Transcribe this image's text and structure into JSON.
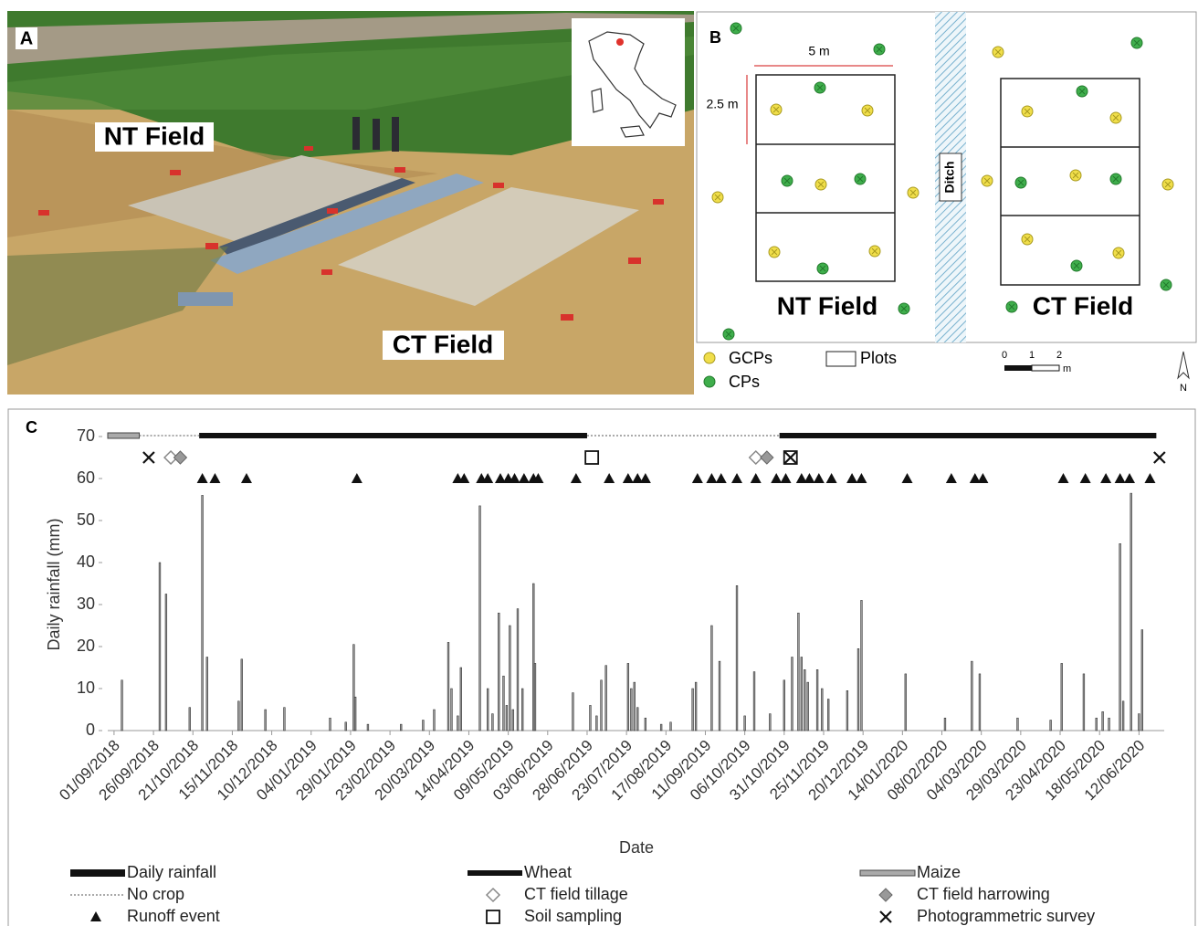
{
  "panel_a": {
    "label": "A",
    "nt_field": "NT Field",
    "ct_field": "CT Field"
  },
  "panel_b": {
    "label": "B",
    "width_label": "5 m",
    "height_label": "2.5 m",
    "ditch": "Ditch",
    "nt_field": "NT Field",
    "ct_field": "CT Field",
    "legend": {
      "gcps": "GCPs",
      "cps": "CPs",
      "plots": "Plots"
    },
    "scale": {
      "ticks": [
        "0",
        "1",
        "2"
      ],
      "unit": "m"
    },
    "north": "N"
  },
  "chart_data": {
    "type": "bar",
    "panel_label": "C",
    "x_label": "Date",
    "y_label": "Daily rainfall (mm)",
    "xlim": [
      "28/08/2018",
      "28/06/2020"
    ],
    "xticks": [
      "01/09/2018",
      "26/09/2018",
      "21/10/2018",
      "15/11/2018",
      "10/12/2018",
      "04/01/2019",
      "29/01/2019",
      "23/02/2019",
      "20/03/2019",
      "14/04/2019",
      "09/05/2019",
      "03/06/2019",
      "28/06/2019",
      "23/07/2019",
      "17/08/2019",
      "11/09/2019",
      "06/10/2019",
      "31/10/2019",
      "25/11/2019",
      "20/12/2019",
      "14/01/2020",
      "08/02/2020",
      "04/03/2020",
      "29/03/2020",
      "23/04/2020",
      "18/05/2020",
      "12/06/2020"
    ],
    "ylim": [
      0,
      70
    ],
    "yticks": [
      0,
      10,
      20,
      30,
      40,
      50,
      60,
      70
    ],
    "series": [
      {
        "name": "Daily rainfall",
        "color": "#222222",
        "x": [
          "06/09/2018",
          "30/09/2018",
          "04/10/2018",
          "19/10/2018",
          "27/10/2018",
          "30/10/2018",
          "19/11/2018",
          "21/11/2018",
          "06/12/2018",
          "18/12/2018",
          "16/01/2019",
          "26/01/2019",
          "31/01/2019",
          "01/02/2019",
          "09/02/2019",
          "02/03/2019",
          "16/03/2019",
          "23/03/2019",
          "01/04/2019",
          "03/04/2019",
          "07/04/2019",
          "09/04/2019",
          "21/04/2019",
          "26/04/2019",
          "29/04/2019",
          "03/05/2019",
          "06/05/2019",
          "08/05/2019",
          "10/05/2019",
          "12/05/2019",
          "15/05/2019",
          "18/05/2019",
          "25/05/2019",
          "26/05/2019",
          "19/06/2019",
          "30/06/2019",
          "04/07/2019",
          "07/07/2019",
          "10/07/2019",
          "24/07/2019",
          "26/07/2019",
          "28/07/2019",
          "30/07/2019",
          "04/08/2019",
          "14/08/2019",
          "20/08/2019",
          "03/09/2019",
          "05/09/2019",
          "15/09/2019",
          "20/09/2019",
          "01/10/2019",
          "06/10/2019",
          "12/10/2019",
          "22/10/2019",
          "31/10/2019",
          "05/11/2019",
          "09/11/2019",
          "11/11/2019",
          "13/11/2019",
          "15/11/2019",
          "21/11/2019",
          "24/11/2019",
          "28/11/2019",
          "10/12/2019",
          "17/12/2019",
          "19/12/2019",
          "16/01/2020",
          "10/02/2020",
          "27/02/2020",
          "03/03/2020",
          "27/03/2020",
          "17/04/2020",
          "24/04/2020",
          "08/05/2020",
          "16/05/2020",
          "20/05/2020",
          "24/05/2020",
          "31/05/2020",
          "02/06/2020",
          "07/06/2020",
          "12/06/2020",
          "14/06/2020"
        ],
        "values": [
          12,
          40,
          32.5,
          5.5,
          56,
          17.5,
          7,
          17,
          5,
          5.5,
          3,
          2,
          20.5,
          8,
          1.5,
          1.5,
          2.5,
          5,
          21,
          10,
          3.5,
          15,
          53.5,
          10,
          4,
          28,
          13,
          6,
          25,
          5,
          29,
          10,
          35,
          16,
          9,
          6,
          3.5,
          12,
          15.5,
          16,
          10,
          11.5,
          5.5,
          3,
          1.5,
          2,
          10,
          11.5,
          25,
          16.5,
          34.5,
          3.5,
          14,
          4,
          12,
          17.5,
          28,
          17.5,
          14.5,
          11.5,
          14.5,
          10,
          7.5,
          9.5,
          19.5,
          31,
          13.5,
          3,
          16.5,
          13.5,
          3,
          2.5,
          16,
          13.5,
          3,
          4.5,
          3,
          44.5,
          7,
          56.5,
          4,
          24
        ]
      }
    ],
    "crops": [
      {
        "name": "Wheat",
        "style": "thick",
        "periods": [
          [
            "25/10/2018",
            "28/06/2019"
          ],
          [
            "28/10/2019",
            "23/06/2020"
          ]
        ]
      },
      {
        "name": "Maize",
        "style": "double",
        "periods": [
          [
            "28/08/2018",
            "17/09/2018"
          ]
        ]
      },
      {
        "name": "No crop",
        "style": "dotted",
        "periods": [
          [
            "17/09/2018",
            "25/10/2018"
          ],
          [
            "28/06/2019",
            "28/10/2019"
          ]
        ]
      }
    ],
    "events": [
      {
        "name": "CT field tillage",
        "marker": "open-diamond",
        "dates": [
          "07/10/2018",
          "13/10/2019"
        ]
      },
      {
        "name": "CT field harrowing",
        "marker": "diamond",
        "dates": [
          "13/10/2018",
          "20/10/2019"
        ]
      },
      {
        "name": "Runoff event",
        "marker": "triangle",
        "dates": [
          "27/10/2018",
          "04/11/2018",
          "24/11/2018",
          "02/02/2019",
          "07/04/2019",
          "11/04/2019",
          "22/04/2019",
          "26/04/2019",
          "04/05/2019",
          "09/05/2019",
          "13/05/2019",
          "19/05/2019",
          "25/05/2019",
          "28/05/2019",
          "21/06/2019",
          "12/07/2019",
          "24/07/2019",
          "30/07/2019",
          "04/08/2019",
          "06/09/2019",
          "15/09/2019",
          "21/09/2019",
          "01/10/2019",
          "13/10/2019",
          "26/10/2019",
          "01/11/2019",
          "11/11/2019",
          "16/11/2019",
          "22/11/2019",
          "30/11/2019",
          "13/12/2019",
          "19/12/2019",
          "17/01/2020",
          "14/02/2020",
          "29/02/2020",
          "05/03/2020",
          "25/04/2020",
          "09/05/2020",
          "22/05/2020",
          "31/05/2020",
          "06/06/2020",
          "19/06/2020"
        ]
      },
      {
        "name": "Soil sampling",
        "marker": "square",
        "dates": [
          "01/07/2019",
          "04/11/2019"
        ]
      },
      {
        "name": "Photogrammetric survey",
        "marker": "cross",
        "dates": [
          "23/09/2018",
          "04/11/2019",
          "25/06/2020"
        ]
      }
    ]
  }
}
